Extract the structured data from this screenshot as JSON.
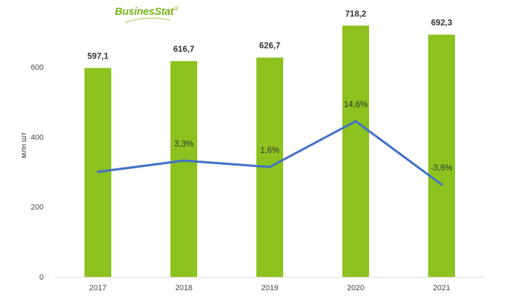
{
  "brand": {
    "logo_text": "BusinesStat",
    "logo_mark": "®"
  },
  "chart_data": {
    "type": "bar",
    "title": "",
    "xlabel": "",
    "ylabel": "млн шт",
    "ylim": [
      0,
      750
    ],
    "yticks": [
      0,
      200,
      400,
      600
    ],
    "categories": [
      "2017",
      "2018",
      "2019",
      "2020",
      "2021"
    ],
    "series": [
      {
        "values": [
          597.1,
          616.7,
          626.7,
          718.2,
          692.3
        ],
        "labels": [
          "597,1",
          "616,7",
          "626,7",
          "718,2",
          "692,3"
        ],
        "color": "#8dc21f"
      }
    ],
    "growth_line": {
      "type": "line",
      "values": [
        null,
        3.3,
        1.6,
        14.6,
        -3.6
      ],
      "labels": [
        "",
        "3,3%",
        "1,6%",
        "14,6%",
        "-3,6%"
      ],
      "color": "#4472c4"
    },
    "grid": false,
    "legend": "none"
  }
}
